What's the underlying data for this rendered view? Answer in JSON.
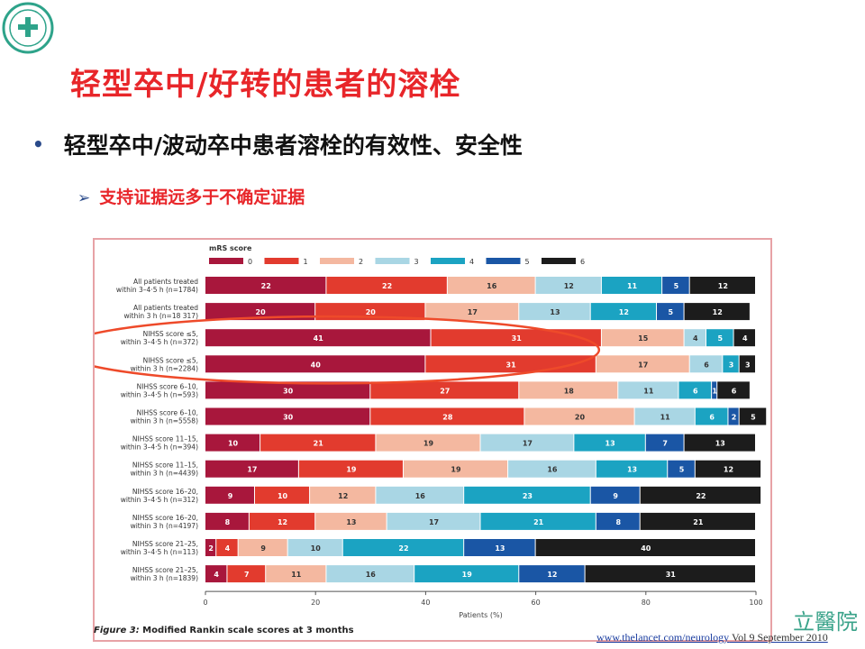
{
  "header": {
    "title": "轻型卒中/好转的患者的溶栓",
    "bullet_main": "轻型卒中/波动卒中患者溶栓的有效性、安全性",
    "bullet_sub": "支持证据远多于不确定证据"
  },
  "figure": {
    "caption_label": "Figure 3:",
    "caption_text": " Modified Rankin scale scores at 3 months",
    "source_link": "www.thelancet.com/neurology",
    "source_vol": "Vol 9 September 2010"
  },
  "brand": {
    "text": "立醫院"
  },
  "chart_data": {
    "type": "bar",
    "stacked": "horizontal",
    "legend_title": "mRS score",
    "legend_position": "top",
    "categories": [
      [
        "All patients treated",
        "within 3–4·5 h (n=1784)"
      ],
      [
        "All patients treated",
        "within 3 h (n=18 317)"
      ],
      [
        "NIHSS score ≤5,",
        "within 3–4·5 h (n=372)"
      ],
      [
        "NIHSS score ≤5,",
        "within 3 h (n=2284)"
      ],
      [
        "NIHSS score 6–10,",
        "within 3–4·5 h (n=593)"
      ],
      [
        "NIHSS score 6–10,",
        "within 3 h (n=5558)"
      ],
      [
        "NIHSS score 11–15,",
        "within 3–4·5 h (n=394)"
      ],
      [
        "NIHSS score 11–15,",
        "within 3 h (n=4439)"
      ],
      [
        "NIHSS score 16–20,",
        "within 3–4·5 h (n=312)"
      ],
      [
        "NIHSS score 16–20,",
        "within 3 h (n=4197)"
      ],
      [
        "NIHSS score 21–25,",
        "within 3–4·5 h (n=113)"
      ],
      [
        "NIHSS score 21–25,",
        "within 3 h (n=1839)"
      ]
    ],
    "series": [
      {
        "name": "0",
        "color": "#a8173c",
        "values": [
          22,
          20,
          41,
          40,
          30,
          30,
          10,
          17,
          9,
          8,
          2,
          4
        ]
      },
      {
        "name": "1",
        "color": "#e23b2e",
        "values": [
          22,
          20,
          31,
          31,
          27,
          28,
          21,
          19,
          10,
          12,
          4,
          7
        ]
      },
      {
        "name": "2",
        "color": "#f4b8a0",
        "values": [
          16,
          17,
          15,
          17,
          18,
          20,
          19,
          19,
          12,
          13,
          9,
          11
        ]
      },
      {
        "name": "3",
        "color": "#a9d6e4",
        "values": [
          12,
          13,
          4,
          6,
          11,
          11,
          17,
          16,
          16,
          17,
          10,
          16
        ]
      },
      {
        "name": "4",
        "color": "#1ba3c2",
        "values": [
          11,
          12,
          5,
          3,
          6,
          6,
          13,
          13,
          23,
          21,
          22,
          19
        ]
      },
      {
        "name": "5",
        "color": "#1a56a5",
        "values": [
          5,
          5,
          0,
          0,
          1,
          2,
          7,
          5,
          9,
          8,
          13,
          12
        ]
      },
      {
        "name": "6",
        "color": "#1c1c1c",
        "values": [
          12,
          12,
          4,
          3,
          6,
          5,
          13,
          12,
          22,
          21,
          40,
          31
        ]
      }
    ],
    "xlabel": "Patients (%)",
    "xlim": [
      0,
      100
    ],
    "xticks": [
      0,
      20,
      40,
      60,
      80,
      100
    ],
    "grid": false,
    "annotation": "red ellipse highlighting the two NIHSS score ≤5 rows"
  }
}
